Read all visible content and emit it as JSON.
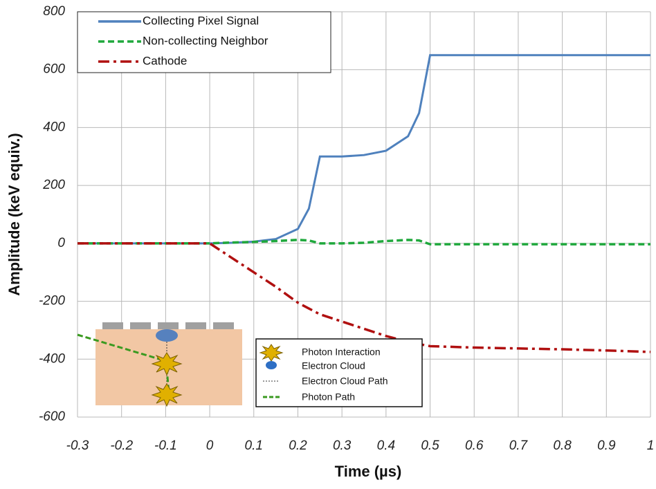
{
  "chart_data": {
    "type": "line",
    "x_label": "Time (µs)",
    "y_label": "Amplitude (keV equiv.)",
    "x": [
      -0.3,
      -0.2,
      -0.1,
      0,
      0.05,
      0.1,
      0.15,
      0.2,
      0.225,
      0.25,
      0.3,
      0.35,
      0.4,
      0.45,
      0.475,
      0.5,
      0.6,
      0.7,
      0.8,
      0.9,
      1
    ],
    "series": [
      {
        "name": "Collecting Pixel Signal",
        "color": "#4f81bd",
        "dash": "solid",
        "values": [
          0,
          0,
          0,
          0,
          2,
          6,
          15,
          50,
          120,
          300,
          300,
          305,
          320,
          370,
          450,
          650,
          650,
          650,
          650,
          650,
          650
        ]
      },
      {
        "name": "Non-collecting Neighbor",
        "color": "#1fa83c",
        "dash": "dashed",
        "values": [
          0,
          0,
          0,
          0,
          3,
          5,
          8,
          12,
          10,
          0,
          0,
          2,
          8,
          12,
          10,
          -3,
          -3,
          -3,
          -3,
          -3,
          -3
        ]
      },
      {
        "name": "Cathode",
        "color": "#b01010",
        "dash": "dashdot",
        "values": [
          0,
          0,
          0,
          0,
          -50,
          -100,
          -150,
          -205,
          -225,
          -245,
          -270,
          -295,
          -320,
          -340,
          -348,
          -355,
          -360,
          -363,
          -366,
          -370,
          -375
        ]
      }
    ],
    "xlim": [
      -0.3,
      1
    ],
    "ylim": [
      -600,
      800
    ],
    "xticks": [
      -0.3,
      -0.2,
      -0.1,
      0,
      0.1,
      0.2,
      0.3,
      0.4,
      0.5,
      0.6,
      0.7,
      0.8,
      0.9,
      1
    ],
    "yticks": [
      -600,
      -400,
      -200,
      0,
      200,
      400,
      600,
      800
    ],
    "grid": true,
    "legend": "top-left",
    "inset_legend": [
      "Photon Interaction",
      "Electron Cloud",
      "Electron Cloud Path",
      "Photon Path"
    ]
  }
}
